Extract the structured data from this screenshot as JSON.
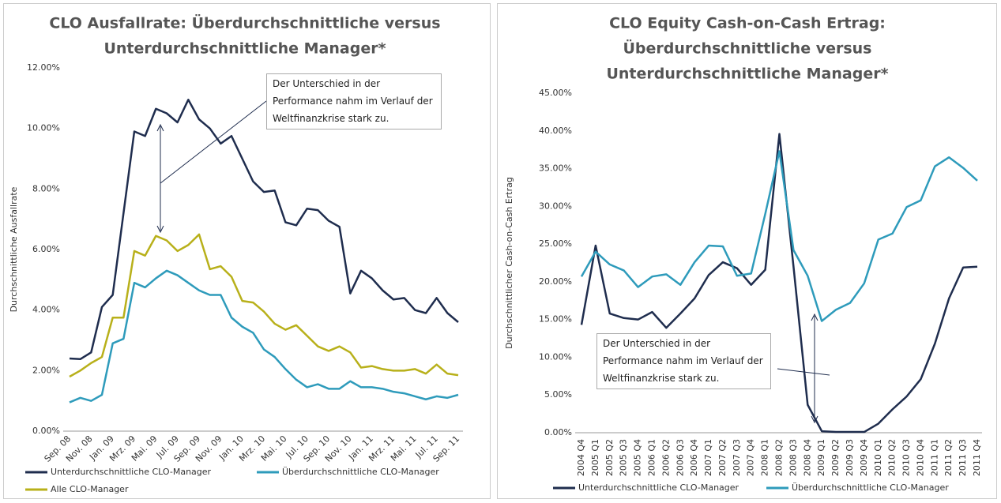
{
  "chart_data": [
    {
      "type": "line",
      "title": [
        "CLO Ausfallrate: Überdurchschnittliche versus",
        "Unterdurchschnittliche Manager*"
      ],
      "y_label": "Durchschnittliche Ausfallrate",
      "annotation": "Der Unterschied in der Performance nahm im Verlauf der Weltfinanzkrise stark zu.",
      "categories": [
        "Sep. 08",
        null,
        "Nov. 08",
        null,
        "Jan. 09",
        null,
        "Mrz. 09",
        null,
        "Mai. 09",
        null,
        "Jul. 09",
        null,
        "Sep. 09",
        null,
        "Nov. 09",
        null,
        "Jan. 10",
        null,
        "Mrz. 10",
        null,
        "Mai. 10",
        null,
        "Jul. 10",
        null,
        "Sep. 10",
        null,
        "Nov. 10",
        null,
        "Jan. 11",
        null,
        "Mrz. 11",
        null,
        "Mai. 11",
        null,
        "Jul. 11",
        null,
        "Sep. 11"
      ],
      "series": [
        {
          "name": "Unterdurchschnittliche CLO-Manager",
          "color": "#1f2d4e",
          "values": [
            2.4,
            2.38,
            2.6,
            4.1,
            4.5,
            7.2,
            9.9,
            9.75,
            10.65,
            10.5,
            10.2,
            10.95,
            10.3,
            10.0,
            9.5,
            9.75,
            9.0,
            8.25,
            7.9,
            7.95,
            6.9,
            6.8,
            7.35,
            7.3,
            6.95,
            6.75,
            4.55,
            5.3,
            5.05,
            4.65,
            4.35,
            4.4,
            4.0,
            3.9,
            4.4,
            3.9,
            3.6
          ]
        },
        {
          "name": "Überdurchschnittliche CLO-Manager",
          "color": "#2e9bbb",
          "values": [
            0.95,
            1.1,
            1.0,
            1.2,
            2.9,
            3.05,
            4.9,
            4.75,
            5.05,
            5.3,
            5.15,
            4.9,
            4.65,
            4.5,
            4.5,
            3.75,
            3.45,
            3.25,
            2.7,
            2.45,
            2.05,
            1.7,
            1.45,
            1.55,
            1.4,
            1.4,
            1.65,
            1.45,
            1.45,
            1.4,
            1.3,
            1.25,
            1.15,
            1.05,
            1.15,
            1.1,
            1.2
          ]
        },
        {
          "name": "Alle CLO-Manager",
          "color": "#b8b01a",
          "values": [
            1.8,
            2.0,
            2.25,
            2.45,
            3.75,
            3.75,
            5.95,
            5.8,
            6.45,
            6.3,
            5.95,
            6.15,
            6.5,
            5.35,
            5.45,
            5.1,
            4.3,
            4.25,
            3.95,
            3.55,
            3.35,
            3.5,
            3.15,
            2.8,
            2.65,
            2.8,
            2.6,
            2.1,
            2.15,
            2.05,
            2.0,
            2.0,
            2.05,
            1.9,
            2.2,
            1.9,
            1.85
          ]
        }
      ],
      "ylim": [
        0,
        12
      ],
      "yticks": [
        {
          "value": 0,
          "label": "0.00%"
        },
        {
          "value": 2,
          "label": "2.00%"
        },
        {
          "value": 4,
          "label": "4.00%"
        },
        {
          "value": 6,
          "label": "6.00%"
        },
        {
          "value": 8,
          "label": "8.00%"
        },
        {
          "value": 10,
          "label": "10.00%"
        },
        {
          "value": 12,
          "label": "12.00%"
        }
      ],
      "grid": false,
      "legend": "bottom"
    },
    {
      "type": "line",
      "title": [
        "CLO Equity Cash-on-Cash Ertrag:",
        "Überdurchschnittliche versus",
        "Unterdurchschnittliche Manager*"
      ],
      "y_label": "Durchschnittlicher Cash-on-Cash Ertrag",
      "annotation": "Der Unterschied in der Performance nahm im Verlauf der Weltfinanzkrise stark zu.",
      "categories": [
        "2004 Q4",
        "2005 Q1",
        "2005 Q2",
        "2005 Q3",
        "2005 Q4",
        "2006 Q1",
        "2006 Q2",
        "2006 Q3",
        "2006 Q4",
        "2007 Q1",
        "2007 Q2",
        "2007 Q3",
        "2007 Q4",
        "2008 Q1",
        "2008 Q2",
        "2008 Q3",
        "2008 Q4",
        "2009 Q1",
        "2009 Q2",
        "2009 Q3",
        "2009 Q4",
        "2010 Q1",
        "2010 Q2",
        "2010 Q3",
        "2010 Q4",
        "2011 Q1",
        "2011 Q2",
        "2011 Q3",
        "2011 Q4"
      ],
      "series": [
        {
          "name": "Unterdurchschnittliche CLO-Manager",
          "color": "#1f2d4e",
          "values": [
            14.3,
            24.8,
            15.8,
            15.2,
            15.0,
            16.0,
            13.9,
            15.8,
            17.8,
            20.9,
            22.6,
            21.8,
            19.6,
            21.6,
            39.6,
            22.0,
            3.7,
            0.2,
            0.1,
            0.1,
            0.1,
            1.2,
            3.1,
            4.8,
            7.1,
            11.8,
            17.8,
            21.9,
            22.0
          ]
        },
        {
          "name": "Überdurchschnittliche CLO-Manager",
          "color": "#2e9bbb",
          "values": [
            20.7,
            24.0,
            22.3,
            21.5,
            19.3,
            20.7,
            21.0,
            19.6,
            22.6,
            24.8,
            24.7,
            20.8,
            21.1,
            29.0,
            37.3,
            24.2,
            20.8,
            14.8,
            16.3,
            17.2,
            19.8,
            25.6,
            26.4,
            29.9,
            30.8,
            35.3,
            36.5,
            35.1,
            33.4
          ]
        }
      ],
      "ylim": [
        0,
        45
      ],
      "yticks": [
        {
          "value": 0,
          "label": "0.00%"
        },
        {
          "value": 5,
          "label": "5.00%"
        },
        {
          "value": 10,
          "label": "10.00%"
        },
        {
          "value": 15,
          "label": "15.00%"
        },
        {
          "value": 20,
          "label": "20.00%"
        },
        {
          "value": 25,
          "label": "25.00%"
        },
        {
          "value": 30,
          "label": "30.00%"
        },
        {
          "value": 35,
          "label": "35.00%"
        },
        {
          "value": 40,
          "label": "40.00%"
        },
        {
          "value": 45,
          "label": "45.00%"
        }
      ],
      "grid": false,
      "legend": "bottom"
    }
  ]
}
